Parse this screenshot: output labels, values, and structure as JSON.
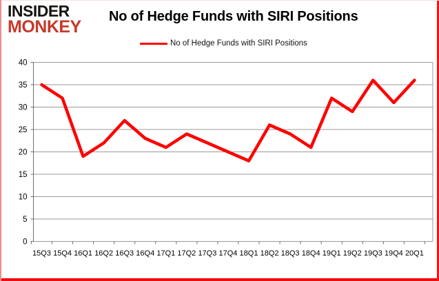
{
  "header": {
    "logo": {
      "line1": "INSIDER",
      "line2": "MONKEY"
    },
    "title": "No of Hedge Funds with SIRI Positions"
  },
  "legend": {
    "label": "No of Hedge Funds with SIRI Positions",
    "swatch_color": "#FE0000"
  },
  "chart_data": {
    "type": "line",
    "title": "No of Hedge Funds with SIRI Positions",
    "categories": [
      "15Q3",
      "15Q4",
      "16Q1",
      "16Q2",
      "16Q3",
      "16Q4",
      "17Q1",
      "17Q2",
      "17Q3",
      "17Q4",
      "18Q1",
      "18Q2",
      "18Q3",
      "18Q4",
      "19Q1",
      "19Q2",
      "19Q3",
      "19Q4",
      "20Q1"
    ],
    "series": [
      {
        "name": "No of Hedge Funds with SIRI Positions",
        "color": "#FE0000",
        "values": [
          35,
          32,
          19,
          22,
          27,
          23,
          21,
          24,
          22,
          20,
          18,
          26,
          24,
          21,
          32,
          29,
          36,
          31,
          36
        ]
      }
    ],
    "xlabel": "",
    "ylabel": "",
    "ylim": [
      0,
      40
    ],
    "ytick_step": 5,
    "grid": true,
    "legend_position": "top-center"
  },
  "colors": {
    "line_red": "#FE0000",
    "logo_red": "#C6392B",
    "grid_gray": "#9a9a9a",
    "axis_gray": "#6e6e6e",
    "frame_border_red": "#F41414"
  }
}
